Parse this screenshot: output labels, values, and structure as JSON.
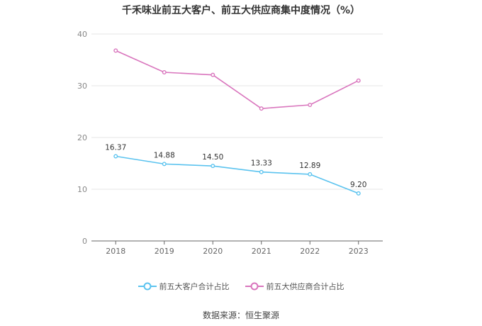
{
  "title": "千禾味业前五大客户、前五大供应商集中度情况（%）",
  "source": "数据来源：恒生聚源",
  "colors": {
    "customers": "#5bc3ef",
    "suppliers": "#d975bd",
    "grid": "#e6e6e6",
    "axis": "#666666"
  },
  "chart_data": {
    "type": "line",
    "title": "千禾味业前五大客户、前五大供应商集中度情况（%）",
    "categories": [
      "2018",
      "2019",
      "2020",
      "2021",
      "2022",
      "2023"
    ],
    "ylim": [
      0,
      40
    ],
    "yticks": [
      0,
      10,
      20,
      30,
      40
    ],
    "grid": true,
    "legend_position": "bottom",
    "series": [
      {
        "name": "前五大客户合计占比",
        "values": [
          16.37,
          14.88,
          14.5,
          13.33,
          12.89,
          9.2
        ],
        "labels": [
          "16.37",
          "14.88",
          "14.50",
          "13.33",
          "12.89",
          "9.20"
        ]
      },
      {
        "name": "前五大供应商合计占比",
        "values": [
          36.8,
          32.6,
          32.1,
          25.6,
          26.3,
          31.0
        ]
      }
    ]
  }
}
